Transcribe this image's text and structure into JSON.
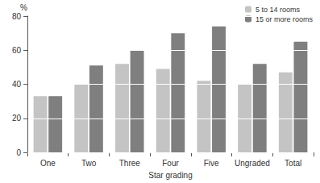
{
  "chart_data": {
    "type": "bar",
    "x_label": "Star grading",
    "y_label": "%",
    "categories": [
      "One",
      "Two",
      "Three",
      "Four",
      "Five",
      "Ungraded",
      "Total"
    ],
    "series": [
      {
        "name": "5 to 14 rooms",
        "color": "#c4c4c4",
        "values": [
          33,
          40,
          52,
          49,
          42,
          40,
          47
        ]
      },
      {
        "name": "15 or more rooms",
        "color": "#7f7f7f",
        "values": [
          33,
          51,
          60,
          70,
          74,
          52,
          65
        ]
      }
    ],
    "ylim": [
      0,
      80
    ],
    "yticks": [
      0,
      20,
      40,
      60,
      80
    ],
    "grid": true,
    "legend": "top-right"
  }
}
